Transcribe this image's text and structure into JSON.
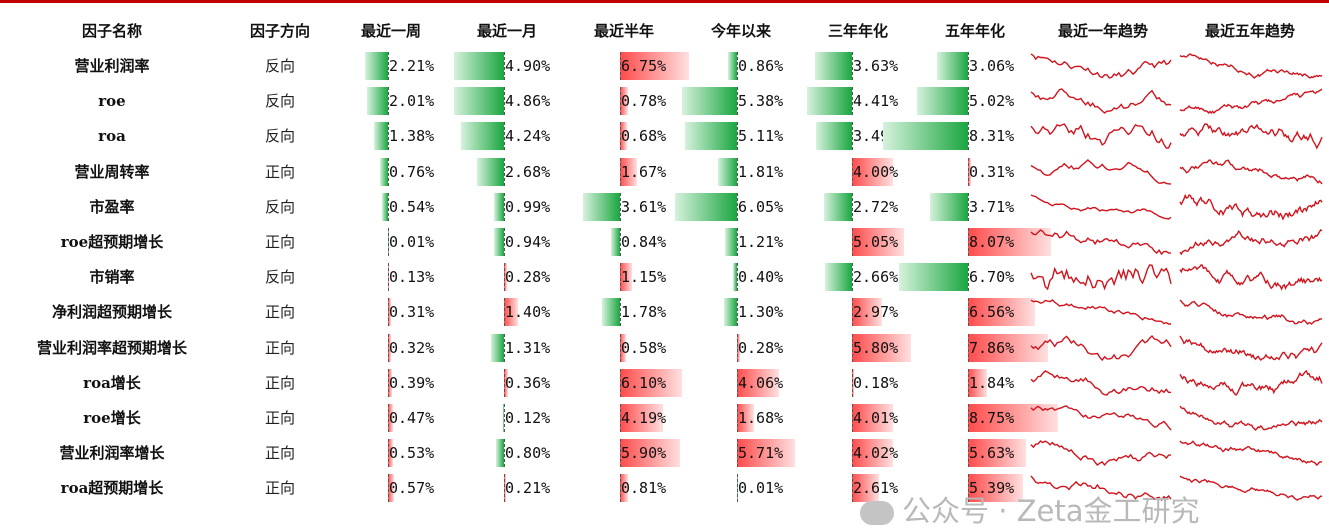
{
  "chart_data": {
    "type": "table",
    "headers": [
      "因子名称",
      "因子方向",
      "最近一周",
      "最近一月",
      "最近半年",
      "今年以来",
      "三年年化",
      "五年年化",
      "最近一年趋势",
      "最近五年趋势"
    ],
    "rows": [
      {
        "name": "营业利润率",
        "direction": "反向",
        "values": [
          -2.21,
          -4.9,
          6.75,
          -0.86,
          -3.63,
          -3.06
        ],
        "labels": [
          "2.21%",
          "4.90%",
          "6.75%",
          "0.86%",
          "3.63%",
          "3.06%"
        ]
      },
      {
        "name": "roe",
        "direction": "反向",
        "values": [
          -2.01,
          -4.86,
          0.78,
          -5.38,
          -4.41,
          -5.02
        ],
        "labels": [
          "2.01%",
          "4.86%",
          "0.78%",
          "5.38%",
          "4.41%",
          "5.02%"
        ]
      },
      {
        "name": "roa",
        "direction": "反向",
        "values": [
          -1.38,
          -4.24,
          0.68,
          -5.11,
          -3.49,
          -8.31
        ],
        "labels": [
          "1.38%",
          "4.24%",
          "0.68%",
          "5.11%",
          "3.49%",
          "8.31%"
        ]
      },
      {
        "name": "营业周转率",
        "direction": "正向",
        "values": [
          -0.76,
          -2.68,
          1.67,
          -1.81,
          4.0,
          0.31
        ],
        "labels": [
          "0.76%",
          "2.68%",
          "1.67%",
          "1.81%",
          "4.00%",
          "0.31%"
        ]
      },
      {
        "name": "市盈率",
        "direction": "反向",
        "values": [
          -0.54,
          -0.99,
          -3.61,
          -6.05,
          -2.72,
          -3.71
        ],
        "labels": [
          "0.54%",
          "0.99%",
          "3.61%",
          "6.05%",
          "2.72%",
          "3.71%"
        ]
      },
      {
        "name": "roe超预期增长",
        "direction": "正向",
        "values": [
          -0.01,
          -0.94,
          -0.84,
          -1.21,
          5.05,
          8.07
        ],
        "labels": [
          "0.01%",
          "0.94%",
          "0.84%",
          "1.21%",
          "5.05%",
          "8.07%"
        ]
      },
      {
        "name": "市销率",
        "direction": "反向",
        "values": [
          0.13,
          0.28,
          1.15,
          -0.4,
          -2.66,
          -6.7
        ],
        "labels": [
          "0.13%",
          "0.28%",
          "1.15%",
          "0.40%",
          "2.66%",
          "6.70%"
        ]
      },
      {
        "name": "净利润超预期增长",
        "direction": "正向",
        "values": [
          0.31,
          1.4,
          -1.78,
          -1.3,
          2.97,
          6.56
        ],
        "labels": [
          "0.31%",
          "1.40%",
          "1.78%",
          "1.30%",
          "2.97%",
          "6.56%"
        ]
      },
      {
        "name": "营业利润率超预期增长",
        "direction": "正向",
        "values": [
          0.32,
          -1.31,
          0.58,
          0.28,
          5.8,
          7.86
        ],
        "labels": [
          "0.32%",
          "1.31%",
          "0.58%",
          "0.28%",
          "5.80%",
          "7.86%"
        ]
      },
      {
        "name": "roa增长",
        "direction": "正向",
        "values": [
          0.39,
          0.36,
          6.1,
          4.06,
          0.18,
          1.84
        ],
        "labels": [
          "0.39%",
          "0.36%",
          "6.10%",
          "4.06%",
          "0.18%",
          "1.84%"
        ]
      },
      {
        "name": "roe增长",
        "direction": "正向",
        "values": [
          0.47,
          -0.12,
          4.19,
          1.68,
          4.01,
          8.75
        ],
        "labels": [
          "0.47%",
          "0.12%",
          "4.19%",
          "1.68%",
          "4.01%",
          "8.75%"
        ]
      },
      {
        "name": "营业利润率增长",
        "direction": "正向",
        "values": [
          0.53,
          -0.8,
          5.9,
          5.71,
          4.02,
          5.63
        ],
        "labels": [
          "0.53%",
          "0.80%",
          "5.90%",
          "5.71%",
          "4.02%",
          "5.63%"
        ]
      },
      {
        "name": "roa超预期增长",
        "direction": "正向",
        "values": [
          0.57,
          0.21,
          0.81,
          -0.01,
          2.61,
          5.39
        ],
        "labels": [
          "0.57%",
          "0.21%",
          "0.81%",
          "0.01%",
          "2.61%",
          "5.39%"
        ]
      }
    ],
    "positive_color": "#ff4b4b",
    "negative_color": "#1aa640",
    "sparkline_color": "#d0141e"
  },
  "watermark": "公众号 · Zeta金工研究"
}
